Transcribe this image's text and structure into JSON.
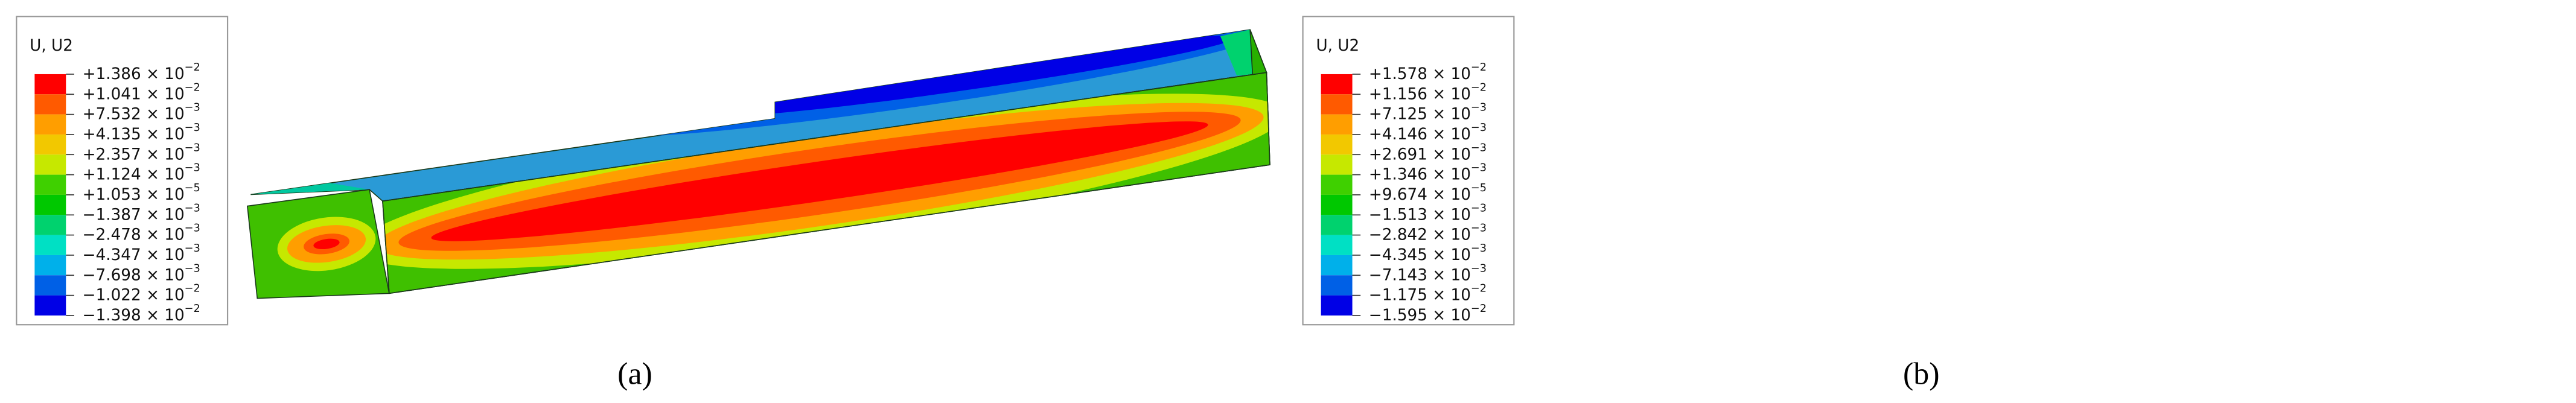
{
  "panels": [
    {
      "caption": "(a)",
      "legend": {
        "title": "U, U2",
        "colors": [
          "#ff0000",
          "#ff5a00",
          "#ff9e00",
          "#f2c800",
          "#c6e800",
          "#3fd000",
          "#00c800",
          "#00d26e",
          "#00e0c4",
          "#00b0ea",
          "#0060e6",
          "#0000e6"
        ],
        "labels": [
          {
            "mantissa": "+1.386 × 10",
            "exponent": "−2"
          },
          {
            "mantissa": "+1.041 × 10",
            "exponent": "−2"
          },
          {
            "mantissa": "+7.532 × 10",
            "exponent": "−3"
          },
          {
            "mantissa": "+4.135 × 10",
            "exponent": "−3"
          },
          {
            "mantissa": "+2.357 × 10",
            "exponent": "−3"
          },
          {
            "mantissa": "+1.124 × 10",
            "exponent": "−3"
          },
          {
            "mantissa": "+1.053 × 10",
            "exponent": "−5"
          },
          {
            "mantissa": "−1.387 × 10",
            "exponent": "−3"
          },
          {
            "mantissa": "−2.478 × 10",
            "exponent": "−3"
          },
          {
            "mantissa": "−4.347 × 10",
            "exponent": "−3"
          },
          {
            "mantissa": "−7.698 × 10",
            "exponent": "−3"
          },
          {
            "mantissa": "−1.022 × 10",
            "exponent": "−2"
          },
          {
            "mantissa": "−1.398 × 10",
            "exponent": "−2"
          }
        ]
      }
    },
    {
      "caption": "(b)",
      "legend": {
        "title": "U, U2",
        "colors": [
          "#ff0000",
          "#ff5a00",
          "#ff9e00",
          "#f2c800",
          "#c6e800",
          "#3fd000",
          "#00c800",
          "#00d26e",
          "#00e0c4",
          "#00b0ea",
          "#0060e6",
          "#0000e6"
        ],
        "labels": [
          {
            "mantissa": "+1.578 × 10",
            "exponent": "−2"
          },
          {
            "mantissa": "+1.156 × 10",
            "exponent": "−2"
          },
          {
            "mantissa": "+7.125 × 10",
            "exponent": "−3"
          },
          {
            "mantissa": "+4.146 × 10",
            "exponent": "−3"
          },
          {
            "mantissa": "+2.691 × 10",
            "exponent": "−3"
          },
          {
            "mantissa": "+1.346 × 10",
            "exponent": "−3"
          },
          {
            "mantissa": "+9.674 × 10",
            "exponent": "−5"
          },
          {
            "mantissa": "−1.513 × 10",
            "exponent": "−3"
          },
          {
            "mantissa": "−2.842 × 10",
            "exponent": "−3"
          },
          {
            "mantissa": "−4.345 × 10",
            "exponent": "−3"
          },
          {
            "mantissa": "−7.143 × 10",
            "exponent": "−3"
          },
          {
            "mantissa": "−1.175 × 10",
            "exponent": "−2"
          },
          {
            "mantissa": "−1.595 × 10",
            "exponent": "−2"
          }
        ]
      }
    }
  ]
}
